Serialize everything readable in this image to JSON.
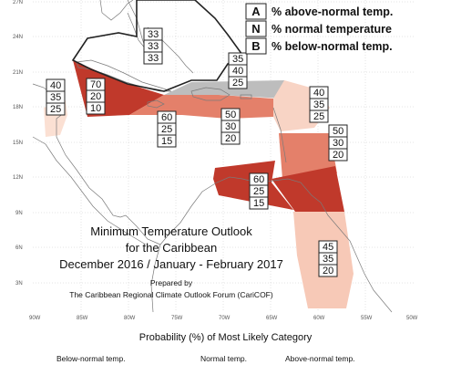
{
  "key": [
    {
      "letter": "A",
      "text": "% above-normal temp."
    },
    {
      "letter": "N",
      "text": "% normal temperature"
    },
    {
      "letter": "B",
      "text": "% below-normal temp."
    }
  ],
  "title": {
    "line1": "Minimum Temperature Outlook",
    "line2": "for the Caribbean",
    "line3": "December 2016 / January - February 2017",
    "prepared": "Prepared by",
    "org": "The Caribbean Regional Climate Outlook Forum (CariCOF)"
  },
  "lat_ticks": [
    "27N",
    "24N",
    "21N",
    "18N",
    "15N",
    "12N",
    "9N",
    "6N",
    "3N"
  ],
  "lon_ticks": [
    "90W",
    "85W",
    "80W",
    "75W",
    "70W",
    "65W",
    "60W",
    "55W",
    "50W"
  ],
  "regions": [
    {
      "name": "bahamas-north",
      "values": [
        "33",
        "33",
        "33"
      ]
    },
    {
      "name": "turks-caicos",
      "values": [
        "35",
        "40",
        "25"
      ]
    },
    {
      "name": "belize",
      "values": [
        "40",
        "35",
        "25"
      ]
    },
    {
      "name": "cuba-cayman",
      "values": [
        "70",
        "20",
        "10"
      ]
    },
    {
      "name": "jamaica",
      "values": [
        "60",
        "25",
        "15"
      ]
    },
    {
      "name": "hispaniola-pr",
      "values": [
        "50",
        "30",
        "20"
      ]
    },
    {
      "name": "northern-leewards",
      "values": [
        "40",
        "35",
        "25"
      ]
    },
    {
      "name": "windwards",
      "values": [
        "50",
        "30",
        "20"
      ]
    },
    {
      "name": "abc-islands",
      "values": [
        "60",
        "25",
        "15"
      ]
    },
    {
      "name": "guianas",
      "values": [
        "45",
        "35",
        "20"
      ]
    }
  ],
  "legend": {
    "title": "Probability (%) of Most Likely Category",
    "categories": [
      "Below-normal temp.",
      "Normal temp.",
      "Above-normal temp."
    ]
  },
  "colors": {
    "above_light": "#f7c9b7",
    "above_mid": "#e4806a",
    "above_dark": "#c0392b",
    "normal": "#bdbdbd",
    "coast": "#888888"
  }
}
